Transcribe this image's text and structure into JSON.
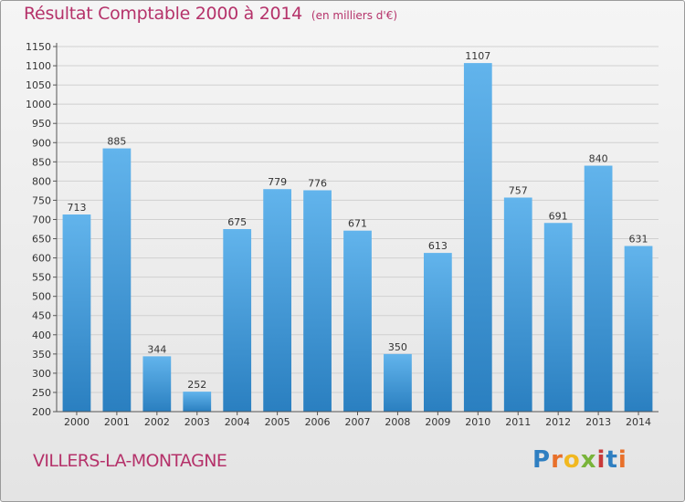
{
  "header": {
    "title": "Résultat Comptable 2000 à 2014",
    "subtitle": "(en milliers d'€)"
  },
  "footer": {
    "commune": "VILLERS-LA-MONTAGNE",
    "logo_text": "Proxiti"
  },
  "colors": {
    "title": "#b5326a",
    "bar_top": "#62b4ec",
    "bar_bottom": "#2a7fc0",
    "grid": "#d0d0d0",
    "axis": "#555555"
  },
  "chart_data": {
    "type": "bar",
    "title": "Résultat Comptable 2000 à 2014",
    "subtitle": "(en milliers d'€)",
    "xlabel": "",
    "ylabel": "",
    "categories": [
      "2000",
      "2001",
      "2002",
      "2003",
      "2004",
      "2005",
      "2006",
      "2007",
      "2008",
      "2009",
      "2010",
      "2011",
      "2012",
      "2013",
      "2014"
    ],
    "values": [
      713,
      885,
      344,
      252,
      675,
      779,
      776,
      671,
      350,
      613,
      1107,
      757,
      691,
      840,
      631
    ],
    "ylim": [
      200,
      1150
    ],
    "yticks": [
      200,
      250,
      300,
      350,
      400,
      450,
      500,
      550,
      600,
      650,
      700,
      750,
      800,
      850,
      900,
      950,
      1000,
      1050,
      1100,
      1150
    ],
    "grid": true,
    "legend": "none"
  }
}
